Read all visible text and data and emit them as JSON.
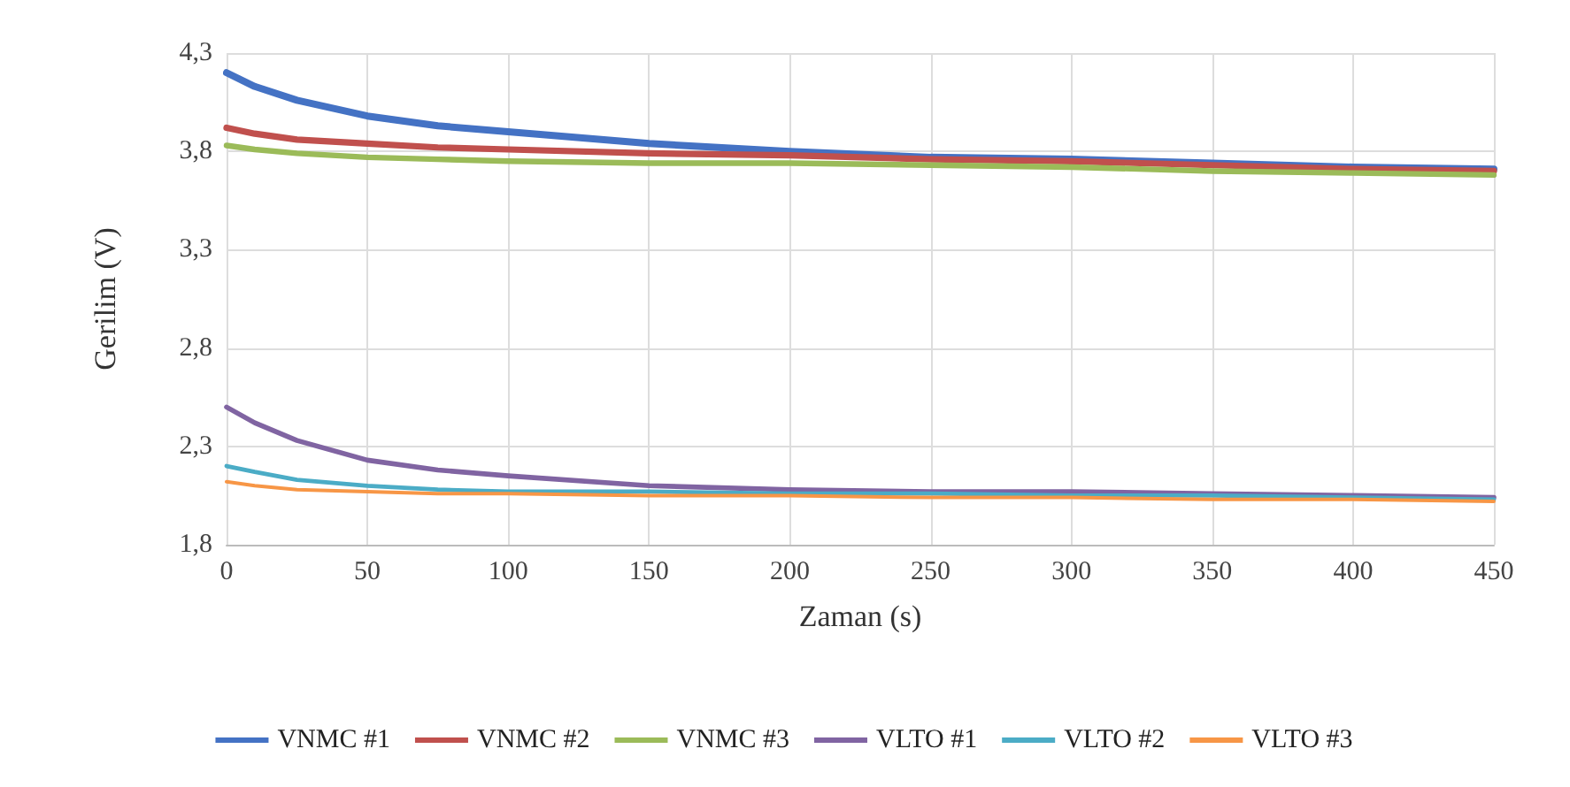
{
  "chart_data": {
    "type": "line",
    "xlabel": "Zaman (s)",
    "ylabel": "Gerilim (V)",
    "x": [
      0,
      10,
      25,
      50,
      75,
      100,
      150,
      200,
      250,
      300,
      350,
      400,
      450
    ],
    "xlim": [
      0,
      450
    ],
    "xticks": [
      0,
      50,
      100,
      150,
      200,
      250,
      300,
      350,
      400,
      450
    ],
    "ylim": [
      1.8,
      4.3
    ],
    "yticks": [
      {
        "value": 1.8,
        "label": "1,8"
      },
      {
        "value": 2.3,
        "label": "2,3"
      },
      {
        "value": 2.8,
        "label": "2,8"
      },
      {
        "value": 3.3,
        "label": "3,3"
      },
      {
        "value": 3.8,
        "label": "3,8"
      },
      {
        "value": 4.3,
        "label": "4,3"
      }
    ],
    "grid": true,
    "legend": "bottom",
    "marker": "none",
    "line_style": "solid",
    "series": [
      {
        "name": "VNMC #1",
        "color": "#4472c4",
        "values": [
          4.2,
          4.13,
          4.06,
          3.98,
          3.93,
          3.9,
          3.84,
          3.8,
          3.77,
          3.76,
          3.74,
          3.72,
          3.71
        ]
      },
      {
        "name": "VNMC #2",
        "color": "#c0504d",
        "values": [
          3.92,
          3.89,
          3.86,
          3.84,
          3.82,
          3.81,
          3.79,
          3.78,
          3.76,
          3.75,
          3.73,
          3.71,
          3.7
        ]
      },
      {
        "name": "VNMC #3",
        "color": "#9bbb59",
        "values": [
          3.83,
          3.81,
          3.79,
          3.77,
          3.76,
          3.75,
          3.74,
          3.74,
          3.73,
          3.72,
          3.7,
          3.69,
          3.68
        ]
      },
      {
        "name": "VLTO #1",
        "color": "#8064a2",
        "values": [
          2.5,
          2.42,
          2.33,
          2.23,
          2.18,
          2.15,
          2.1,
          2.08,
          2.07,
          2.07,
          2.06,
          2.05,
          2.04
        ]
      },
      {
        "name": "VLTO #2",
        "color": "#4bacc6",
        "values": [
          2.2,
          2.17,
          2.13,
          2.1,
          2.08,
          2.07,
          2.07,
          2.06,
          2.06,
          2.05,
          2.05,
          2.04,
          2.03
        ]
      },
      {
        "name": "VLTO #3",
        "color": "#f79646",
        "values": [
          2.12,
          2.1,
          2.08,
          2.07,
          2.06,
          2.06,
          2.05,
          2.05,
          2.04,
          2.04,
          2.03,
          2.03,
          2.02
        ]
      }
    ]
  }
}
